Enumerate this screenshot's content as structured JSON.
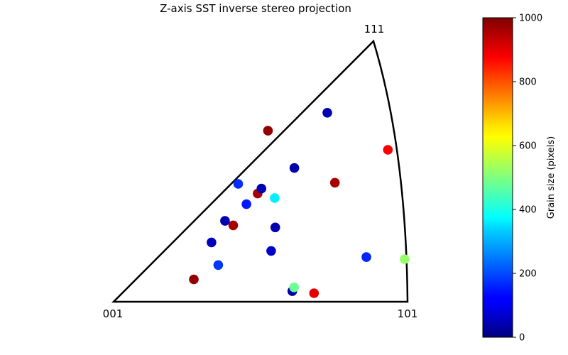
{
  "chart_data": {
    "type": "scatter",
    "title": "Z-axis SST inverse stereo projection",
    "corner_labels": {
      "origin": "001",
      "right": "101",
      "top": "111"
    },
    "colorbar": {
      "label": "Grain size (pixels)",
      "min": 0,
      "max": 1000,
      "ticks": [
        "0",
        "200",
        "400",
        "600",
        "800",
        "1000"
      ],
      "tick_values": [
        0,
        200,
        400,
        600,
        800,
        1000
      ],
      "colormap": "jet"
    },
    "points": [
      {
        "x": 0.273,
        "y": 0.076,
        "grain_size": 980
      },
      {
        "x": 0.407,
        "y": 0.26,
        "grain_size": 960
      },
      {
        "x": 0.525,
        "y": 0.582,
        "grain_size": 980
      },
      {
        "x": 0.49,
        "y": 0.368,
        "grain_size": 960
      },
      {
        "x": 0.753,
        "y": 0.405,
        "grain_size": 960
      },
      {
        "x": 0.933,
        "y": 0.517,
        "grain_size": 880
      },
      {
        "x": 0.682,
        "y": 0.029,
        "grain_size": 900
      },
      {
        "x": 0.379,
        "y": 0.275,
        "grain_size": 50
      },
      {
        "x": 0.333,
        "y": 0.202,
        "grain_size": 60
      },
      {
        "x": 0.615,
        "y": 0.455,
        "grain_size": 40
      },
      {
        "x": 0.503,
        "y": 0.385,
        "grain_size": 50
      },
      {
        "x": 0.55,
        "y": 0.253,
        "grain_size": 50
      },
      {
        "x": 0.536,
        "y": 0.173,
        "grain_size": 70
      },
      {
        "x": 0.727,
        "y": 0.643,
        "grain_size": 50
      },
      {
        "x": 0.608,
        "y": 0.036,
        "grain_size": 40
      },
      {
        "x": 0.452,
        "y": 0.332,
        "grain_size": 150
      },
      {
        "x": 0.356,
        "y": 0.125,
        "grain_size": 180
      },
      {
        "x": 0.424,
        "y": 0.401,
        "grain_size": 170
      },
      {
        "x": 0.548,
        "y": 0.353,
        "grain_size": 360
      },
      {
        "x": 0.99,
        "y": 0.145,
        "grain_size": 520
      },
      {
        "x": 0.614,
        "y": 0.049,
        "grain_size": 480
      },
      {
        "x": 0.86,
        "y": 0.152,
        "grain_size": 160
      }
    ]
  }
}
